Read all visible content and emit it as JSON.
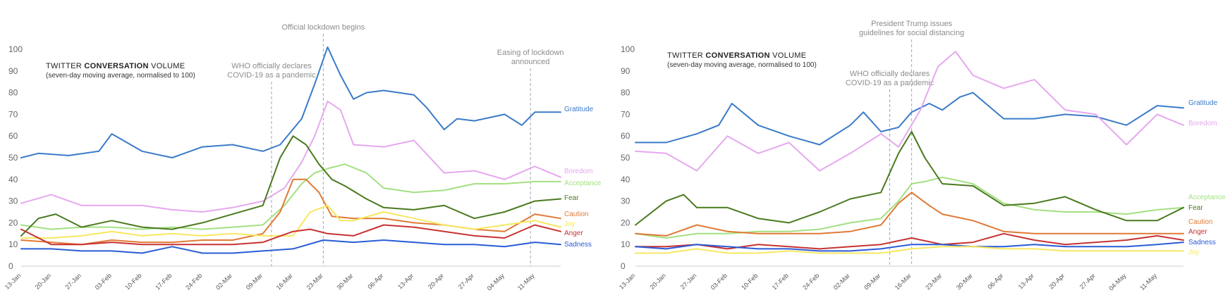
{
  "chart_data": [
    {
      "type": "line",
      "title_prefix": "TWITTER ",
      "title_bold": "CONVERSATION",
      "title_suffix": " VOLUME",
      "subtitle": "(seven-day moving average, normalised to 100)",
      "ylim": [
        0,
        100
      ],
      "yticks": [
        0,
        10,
        20,
        30,
        40,
        50,
        60,
        70,
        80,
        90,
        100
      ],
      "x_start": "2020-01-13",
      "x_end": "2020-05-17",
      "xticks": [
        "13-Jan",
        "20-Jan",
        "27-Jan",
        "03-Feb",
        "10-Feb",
        "17-Feb",
        "24-Feb",
        "02-Mar",
        "09-Mar",
        "16-Mar",
        "23-Mar",
        "30-Mar",
        "06-Apr",
        "13-Apr",
        "20-Apr",
        "27-Apr",
        "04-May",
        "11-May"
      ],
      "annotations": [
        {
          "date": "2020-03-11",
          "text": [
            "WHO officially declares",
            "COVID-19 as a pandemic"
          ]
        },
        {
          "date": "2020-03-23",
          "text": [
            "Official lockdown begins"
          ]
        },
        {
          "date": "2020-05-10",
          "text": [
            "Easing of lockdown",
            "announced"
          ]
        }
      ],
      "series": [
        {
          "name": "Gratitude",
          "color": "#3a7bc8",
          "x": [
            "2020-01-13",
            "2020-01-17",
            "2020-01-24",
            "2020-01-31",
            "2020-02-03",
            "2020-02-10",
            "2020-02-17",
            "2020-02-24",
            "2020-03-02",
            "2020-03-09",
            "2020-03-13",
            "2020-03-18",
            "2020-03-21",
            "2020-03-24",
            "2020-03-27",
            "2020-03-30",
            "2020-04-02",
            "2020-04-06",
            "2020-04-13",
            "2020-04-16",
            "2020-04-20",
            "2020-04-23",
            "2020-04-27",
            "2020-05-04",
            "2020-05-08",
            "2020-05-11",
            "2020-05-17"
          ],
          "y": [
            50,
            52,
            51,
            53,
            61,
            53,
            50,
            55,
            56,
            53,
            56,
            68,
            84,
            101,
            88,
            77,
            80,
            81,
            79,
            73,
            63,
            68,
            67,
            70,
            65,
            71,
            71
          ]
        },
        {
          "name": "Boredom",
          "color": "#e6a8ef",
          "x": [
            "2020-01-13",
            "2020-01-20",
            "2020-01-27",
            "2020-02-03",
            "2020-02-10",
            "2020-02-17",
            "2020-02-24",
            "2020-03-02",
            "2020-03-09",
            "2020-03-14",
            "2020-03-18",
            "2020-03-21",
            "2020-03-24",
            "2020-03-27",
            "2020-03-30",
            "2020-04-06",
            "2020-04-13",
            "2020-04-20",
            "2020-04-27",
            "2020-05-04",
            "2020-05-11",
            "2020-05-17"
          ],
          "y": [
            29,
            33,
            28,
            28,
            28,
            26,
            25,
            27,
            30,
            36,
            48,
            60,
            76,
            72,
            56,
            55,
            58,
            43,
            44,
            40,
            46,
            41
          ]
        },
        {
          "name": "Acceptance",
          "color": "#a4e082",
          "x": [
            "2020-01-13",
            "2020-01-20",
            "2020-01-27",
            "2020-02-03",
            "2020-02-10",
            "2020-02-17",
            "2020-02-24",
            "2020-03-02",
            "2020-03-09",
            "2020-03-14",
            "2020-03-18",
            "2020-03-21",
            "2020-03-24",
            "2020-03-28",
            "2020-04-02",
            "2020-04-06",
            "2020-04-13",
            "2020-04-20",
            "2020-04-27",
            "2020-05-04",
            "2020-05-11",
            "2020-05-17"
          ],
          "y": [
            19,
            17,
            18,
            18,
            17,
            18,
            17,
            18,
            19,
            28,
            38,
            43,
            45,
            47,
            43,
            36,
            34,
            35,
            38,
            38,
            39,
            39
          ]
        },
        {
          "name": "Fear",
          "color": "#4a7a1e",
          "x": [
            "2020-01-13",
            "2020-01-17",
            "2020-01-21",
            "2020-01-27",
            "2020-02-03",
            "2020-02-10",
            "2020-02-17",
            "2020-02-24",
            "2020-03-02",
            "2020-03-09",
            "2020-03-13",
            "2020-03-16",
            "2020-03-19",
            "2020-03-22",
            "2020-03-25",
            "2020-03-28",
            "2020-04-02",
            "2020-04-06",
            "2020-04-13",
            "2020-04-20",
            "2020-04-27",
            "2020-05-04",
            "2020-05-11",
            "2020-05-17"
          ],
          "y": [
            14,
            22,
            24,
            18,
            21,
            18,
            17,
            20,
            24,
            28,
            50,
            60,
            56,
            47,
            40,
            37,
            31,
            27,
            26,
            28,
            22,
            25,
            30,
            31
          ]
        },
        {
          "name": "Caution",
          "color": "#e07a36",
          "x": [
            "2020-01-13",
            "2020-01-20",
            "2020-01-27",
            "2020-02-03",
            "2020-02-10",
            "2020-02-17",
            "2020-02-24",
            "2020-03-02",
            "2020-03-09",
            "2020-03-13",
            "2020-03-16",
            "2020-03-19",
            "2020-03-22",
            "2020-03-25",
            "2020-03-30",
            "2020-04-06",
            "2020-04-13",
            "2020-04-20",
            "2020-04-27",
            "2020-05-04",
            "2020-05-11",
            "2020-05-17"
          ],
          "y": [
            12,
            11,
            10,
            12,
            11,
            11,
            12,
            12,
            15,
            25,
            40,
            40,
            34,
            23,
            22,
            22,
            20,
            19,
            17,
            16,
            24,
            22
          ]
        },
        {
          "name": "Joy",
          "color": "#f7e860",
          "x": [
            "2020-01-13",
            "2020-01-20",
            "2020-01-27",
            "2020-02-03",
            "2020-02-10",
            "2020-02-17",
            "2020-02-24",
            "2020-03-02",
            "2020-03-09",
            "2020-03-16",
            "2020-03-20",
            "2020-03-24",
            "2020-03-27",
            "2020-03-30",
            "2020-04-06",
            "2020-04-13",
            "2020-04-20",
            "2020-04-27",
            "2020-05-04",
            "2020-05-11",
            "2020-05-17"
          ],
          "y": [
            13,
            13,
            14,
            16,
            14,
            15,
            14,
            15,
            14,
            14,
            25,
            28,
            21,
            21,
            25,
            22,
            19,
            17,
            19,
            21,
            18
          ]
        },
        {
          "name": "Anger",
          "color": "#c83232",
          "x": [
            "2020-01-13",
            "2020-01-20",
            "2020-01-27",
            "2020-02-03",
            "2020-02-10",
            "2020-02-17",
            "2020-02-24",
            "2020-03-02",
            "2020-03-09",
            "2020-03-16",
            "2020-03-20",
            "2020-03-24",
            "2020-03-30",
            "2020-04-06",
            "2020-04-13",
            "2020-04-20",
            "2020-04-27",
            "2020-05-04",
            "2020-05-11",
            "2020-05-17"
          ],
          "y": [
            17,
            10,
            10,
            11,
            10,
            10,
            10,
            10,
            11,
            16,
            17,
            15,
            14,
            19,
            18,
            16,
            14,
            13,
            19,
            16
          ]
        },
        {
          "name": "Sadness",
          "color": "#2a5cd6",
          "x": [
            "2020-01-13",
            "2020-01-20",
            "2020-01-27",
            "2020-02-03",
            "2020-02-10",
            "2020-02-17",
            "2020-02-24",
            "2020-03-02",
            "2020-03-09",
            "2020-03-16",
            "2020-03-23",
            "2020-03-30",
            "2020-04-06",
            "2020-04-13",
            "2020-04-20",
            "2020-04-27",
            "2020-05-04",
            "2020-05-11",
            "2020-05-17"
          ],
          "y": [
            8,
            8,
            7,
            7,
            6,
            9,
            6,
            6,
            7,
            8,
            12,
            11,
            12,
            11,
            10,
            10,
            9,
            11,
            10
          ]
        }
      ]
    },
    {
      "type": "line",
      "title_prefix": "TWITTER ",
      "title_bold": "CONVERSATION",
      "title_suffix": " VOLUME",
      "subtitle": "(seven-day moving average, normalised to 100)",
      "ylim": [
        0,
        100
      ],
      "yticks": [
        0,
        10,
        20,
        30,
        40,
        50,
        60,
        70,
        80,
        90,
        100
      ],
      "x_start": "2020-01-13",
      "x_end": "2020-05-17",
      "xticks": [
        "13-Jan",
        "20-Jan",
        "27-Jan",
        "03-Feb",
        "10-Feb",
        "17-Feb",
        "24-Feb",
        "02-Mar",
        "09-Mar",
        "16-Mar",
        "23-Mar",
        "30-Mar",
        "06-Apr",
        "13-Apr",
        "20-Apr",
        "27-Apr",
        "04-May",
        "11-May"
      ],
      "annotations": [
        {
          "date": "2020-03-11",
          "text": [
            "WHO officially declares",
            "COVID-19 as a pandemic"
          ]
        },
        {
          "date": "2020-03-16",
          "text": [
            "President Trump issues",
            "guidelines for social distancing"
          ]
        }
      ],
      "series": [
        {
          "name": "Gratitude",
          "color": "#3a7bc8",
          "x": [
            "2020-01-13",
            "2020-01-20",
            "2020-01-27",
            "2020-02-01",
            "2020-02-04",
            "2020-02-10",
            "2020-02-17",
            "2020-02-24",
            "2020-03-02",
            "2020-03-05",
            "2020-03-09",
            "2020-03-13",
            "2020-03-16",
            "2020-03-20",
            "2020-03-23",
            "2020-03-27",
            "2020-03-30",
            "2020-04-06",
            "2020-04-13",
            "2020-04-20",
            "2020-04-27",
            "2020-05-04",
            "2020-05-11",
            "2020-05-17"
          ],
          "y": [
            57,
            57,
            61,
            65,
            75,
            65,
            60,
            56,
            65,
            71,
            62,
            64,
            71,
            75,
            72,
            78,
            80,
            68,
            68,
            70,
            69,
            65,
            74,
            73
          ]
        },
        {
          "name": "Boredom",
          "color": "#e6a8ef",
          "x": [
            "2020-01-13",
            "2020-01-20",
            "2020-01-27",
            "2020-02-03",
            "2020-02-10",
            "2020-02-17",
            "2020-02-24",
            "2020-03-02",
            "2020-03-09",
            "2020-03-13",
            "2020-03-18",
            "2020-03-22",
            "2020-03-26",
            "2020-03-30",
            "2020-04-06",
            "2020-04-13",
            "2020-04-20",
            "2020-04-27",
            "2020-05-04",
            "2020-05-11",
            "2020-05-17"
          ],
          "y": [
            53,
            52,
            44,
            60,
            52,
            57,
            44,
            52,
            61,
            55,
            72,
            92,
            99,
            88,
            82,
            86,
            72,
            70,
            56,
            70,
            65
          ]
        },
        {
          "name": "Acceptance",
          "color": "#a4e082",
          "x": [
            "2020-01-13",
            "2020-01-20",
            "2020-01-27",
            "2020-02-03",
            "2020-02-10",
            "2020-02-17",
            "2020-02-24",
            "2020-03-02",
            "2020-03-09",
            "2020-03-13",
            "2020-03-16",
            "2020-03-19",
            "2020-03-23",
            "2020-03-30",
            "2020-04-06",
            "2020-04-13",
            "2020-04-20",
            "2020-04-27",
            "2020-05-04",
            "2020-05-11",
            "2020-05-17"
          ],
          "y": [
            15,
            13,
            15,
            15,
            16,
            16,
            17,
            20,
            22,
            30,
            38,
            39,
            41,
            38,
            29,
            26,
            25,
            25,
            24,
            26,
            27
          ]
        },
        {
          "name": "Fear",
          "color": "#4a7a1e",
          "x": [
            "2020-01-13",
            "2020-01-20",
            "2020-01-24",
            "2020-01-27",
            "2020-02-03",
            "2020-02-10",
            "2020-02-17",
            "2020-02-24",
            "2020-03-02",
            "2020-03-09",
            "2020-03-13",
            "2020-03-16",
            "2020-03-19",
            "2020-03-23",
            "2020-03-30",
            "2020-04-06",
            "2020-04-13",
            "2020-04-20",
            "2020-04-27",
            "2020-05-04",
            "2020-05-11",
            "2020-05-17"
          ],
          "y": [
            19,
            30,
            33,
            27,
            27,
            22,
            20,
            25,
            31,
            34,
            52,
            62,
            50,
            38,
            37,
            28,
            29,
            32,
            26,
            21,
            21,
            27
          ]
        },
        {
          "name": "Caution",
          "color": "#e07a36",
          "x": [
            "2020-01-13",
            "2020-01-20",
            "2020-01-27",
            "2020-02-03",
            "2020-02-10",
            "2020-02-17",
            "2020-02-24",
            "2020-03-02",
            "2020-03-09",
            "2020-03-13",
            "2020-03-16",
            "2020-03-20",
            "2020-03-23",
            "2020-03-30",
            "2020-04-06",
            "2020-04-13",
            "2020-04-20",
            "2020-04-27",
            "2020-05-04",
            "2020-05-11",
            "2020-05-17"
          ],
          "y": [
            15,
            14,
            19,
            16,
            15,
            15,
            15,
            16,
            19,
            29,
            34,
            28,
            24,
            21,
            16,
            15,
            15,
            15,
            15,
            15,
            15
          ]
        },
        {
          "name": "Anger",
          "color": "#c83232",
          "x": [
            "2020-01-13",
            "2020-01-20",
            "2020-01-27",
            "2020-02-03",
            "2020-02-10",
            "2020-02-17",
            "2020-02-24",
            "2020-03-02",
            "2020-03-09",
            "2020-03-16",
            "2020-03-23",
            "2020-03-30",
            "2020-04-06",
            "2020-04-13",
            "2020-04-20",
            "2020-04-27",
            "2020-05-04",
            "2020-05-11",
            "2020-05-17"
          ],
          "y": [
            9,
            9,
            10,
            8,
            10,
            9,
            8,
            9,
            10,
            13,
            10,
            11,
            15,
            12,
            10,
            11,
            12,
            14,
            12
          ]
        },
        {
          "name": "Sadness",
          "color": "#2a5cd6",
          "x": [
            "2020-01-13",
            "2020-01-20",
            "2020-01-27",
            "2020-02-03",
            "2020-02-10",
            "2020-02-17",
            "2020-02-24",
            "2020-03-02",
            "2020-03-09",
            "2020-03-16",
            "2020-03-23",
            "2020-03-30",
            "2020-04-06",
            "2020-04-13",
            "2020-04-20",
            "2020-04-27",
            "2020-05-04",
            "2020-05-11",
            "2020-05-17"
          ],
          "y": [
            9,
            8,
            10,
            9,
            8,
            8,
            7,
            7,
            8,
            10,
            10,
            9,
            9,
            10,
            9,
            9,
            9,
            10,
            11
          ]
        },
        {
          "name": "Joy",
          "color": "#f7e860",
          "x": [
            "2020-01-13",
            "2020-01-20",
            "2020-01-27",
            "2020-02-03",
            "2020-02-10",
            "2020-02-17",
            "2020-02-24",
            "2020-03-02",
            "2020-03-09",
            "2020-03-16",
            "2020-03-23",
            "2020-03-30",
            "2020-04-06",
            "2020-04-13",
            "2020-04-20",
            "2020-04-27",
            "2020-05-04",
            "2020-05-11",
            "2020-05-17"
          ],
          "y": [
            6,
            6,
            8,
            6,
            6,
            7,
            6,
            6,
            6,
            8,
            9,
            9,
            8,
            8,
            7,
            7,
            7,
            7,
            7
          ]
        }
      ]
    }
  ]
}
